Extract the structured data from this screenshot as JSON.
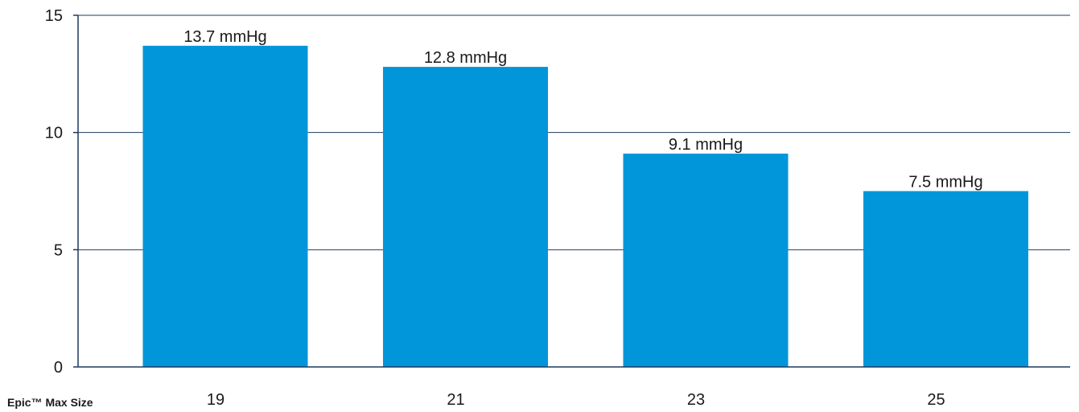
{
  "chart_data": {
    "type": "bar",
    "categories": [
      "19",
      "21",
      "23",
      "25"
    ],
    "values": [
      13.7,
      12.8,
      9.1,
      7.5
    ],
    "data_labels": [
      "13.7 mmHg",
      "12.8 mmHg",
      "9.1 mmHg",
      "7.5 mmHg"
    ],
    "category_axis_label": "Epic™ Max Size",
    "title": "",
    "xlabel": "",
    "ylabel": "",
    "ylim": [
      0,
      15
    ],
    "yticks": [
      0,
      5,
      10,
      15
    ],
    "grid": true,
    "colors": {
      "bar": "#0096d9",
      "grid": "#1f3a5f",
      "axis": "#1f3a5f"
    }
  }
}
